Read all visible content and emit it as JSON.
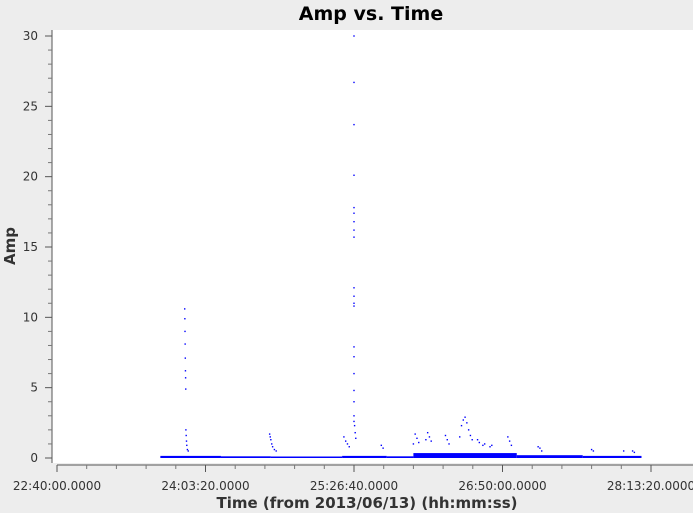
{
  "chart_data": {
    "type": "scatter",
    "title": "Amp vs. Time",
    "xlabel": "Time (from 2013/06/13) (hh:mm:ss)",
    "ylabel": "Amp",
    "x_ticks": [
      "22:40:00.0000",
      "24:03:20.0000",
      "25:26:40.0000",
      "26:50:00.0000",
      "28:13:20.0000"
    ],
    "y_ticks": [
      "0",
      "5",
      "10",
      "15",
      "20",
      "25",
      "30"
    ],
    "xlim": [
      "22:40:00",
      "28:13:20"
    ],
    "ylim": [
      0,
      30
    ],
    "grid": false,
    "marker_color": "#0000ff",
    "series": [
      {
        "points": [
          [
            "23:51:40",
            10.6
          ],
          [
            "23:51:45",
            9.9
          ],
          [
            "23:51:50",
            9.0
          ],
          [
            "23:51:55",
            8.1
          ],
          [
            "23:52:00",
            7.1
          ],
          [
            "23:52:05",
            6.2
          ],
          [
            "23:52:10",
            5.7
          ],
          [
            "23:52:15",
            4.9
          ],
          [
            "23:52:20",
            2.0
          ],
          [
            "23:52:30",
            1.6
          ],
          [
            "23:52:40",
            1.2
          ],
          [
            "23:52:50",
            0.9
          ],
          [
            "23:53:10",
            0.6
          ],
          [
            "23:53:40",
            0.5
          ],
          [
            "24:39:20",
            1.7
          ],
          [
            "24:39:40",
            1.5
          ],
          [
            "24:40:00",
            1.3
          ],
          [
            "24:40:30",
            1.0
          ],
          [
            "24:41:00",
            0.8
          ],
          [
            "24:42:00",
            0.6
          ],
          [
            "24:43:00",
            0.5
          ],
          [
            "25:21:00",
            1.5
          ],
          [
            "25:22:00",
            1.2
          ],
          [
            "25:23:00",
            1.0
          ],
          [
            "25:24:00",
            0.8
          ],
          [
            "25:26:40",
            30.0
          ],
          [
            "25:26:40",
            26.7
          ],
          [
            "25:26:40",
            23.7
          ],
          [
            "25:26:40",
            20.1
          ],
          [
            "25:26:40",
            17.8
          ],
          [
            "25:26:40",
            17.4
          ],
          [
            "25:26:40",
            16.8
          ],
          [
            "25:26:40",
            16.2
          ],
          [
            "25:26:40",
            15.7
          ],
          [
            "25:26:40",
            12.1
          ],
          [
            "25:26:40",
            11.5
          ],
          [
            "25:26:40",
            11.0
          ],
          [
            "25:26:40",
            10.8
          ],
          [
            "25:26:40",
            7.9
          ],
          [
            "25:26:40",
            7.2
          ],
          [
            "25:26:40",
            6.0
          ],
          [
            "25:26:40",
            4.8
          ],
          [
            "25:26:40",
            4.0
          ],
          [
            "25:26:40",
            3.0
          ],
          [
            "25:26:40",
            2.6
          ],
          [
            "25:27:00",
            2.3
          ],
          [
            "25:27:20",
            1.8
          ],
          [
            "25:27:40",
            1.4
          ],
          [
            "25:42:00",
            0.9
          ],
          [
            "25:43:00",
            0.7
          ],
          [
            "26:00:00",
            1.0
          ],
          [
            "26:01:00",
            1.7
          ],
          [
            "26:02:00",
            1.4
          ],
          [
            "26:03:00",
            1.1
          ],
          [
            "26:07:00",
            1.3
          ],
          [
            "26:08:00",
            1.8
          ],
          [
            "26:09:00",
            1.5
          ],
          [
            "26:10:00",
            1.2
          ],
          [
            "26:18:00",
            1.6
          ],
          [
            "26:19:00",
            1.3
          ],
          [
            "26:20:00",
            1.0
          ],
          [
            "26:26:00",
            1.5
          ],
          [
            "26:27:00",
            2.3
          ],
          [
            "26:28:00",
            2.7
          ],
          [
            "26:29:00",
            2.9
          ],
          [
            "26:30:00",
            2.5
          ],
          [
            "26:31:00",
            2.0
          ],
          [
            "26:32:00",
            1.6
          ],
          [
            "26:33:00",
            1.3
          ],
          [
            "26:36:00",
            1.3
          ],
          [
            "26:37:00",
            1.1
          ],
          [
            "26:39:00",
            0.9
          ],
          [
            "26:40:00",
            1.0
          ],
          [
            "26:43:00",
            0.8
          ],
          [
            "26:44:00",
            0.9
          ],
          [
            "26:53:00",
            1.5
          ],
          [
            "26:54:00",
            1.2
          ],
          [
            "26:55:00",
            0.9
          ],
          [
            "27:10:00",
            0.8
          ],
          [
            "27:11:00",
            0.7
          ],
          [
            "27:12:00",
            0.5
          ],
          [
            "27:40:00",
            0.6
          ],
          [
            "27:41:00",
            0.5
          ],
          [
            "27:58:00",
            0.5
          ],
          [
            "28:03:00",
            0.5
          ],
          [
            "28:04:00",
            0.4
          ]
        ],
        "baseline_ranges": [
          {
            "from": "23:38:00",
            "to": "24:12:00",
            "level": 0.15
          },
          {
            "from": "24:12:00",
            "to": "24:40:00",
            "level": 0.12
          },
          {
            "from": "24:40:00",
            "to": "25:20:00",
            "level": 0.1
          },
          {
            "from": "25:20:00",
            "to": "25:45:00",
            "level": 0.15
          },
          {
            "from": "25:45:00",
            "to": "26:00:00",
            "level": 0.12
          },
          {
            "from": "26:00:00",
            "to": "26:58:00",
            "level": 0.35
          },
          {
            "from": "26:58:00",
            "to": "27:35:00",
            "level": 0.2
          },
          {
            "from": "27:35:00",
            "to": "28:08:00",
            "level": 0.15
          }
        ]
      }
    ]
  }
}
